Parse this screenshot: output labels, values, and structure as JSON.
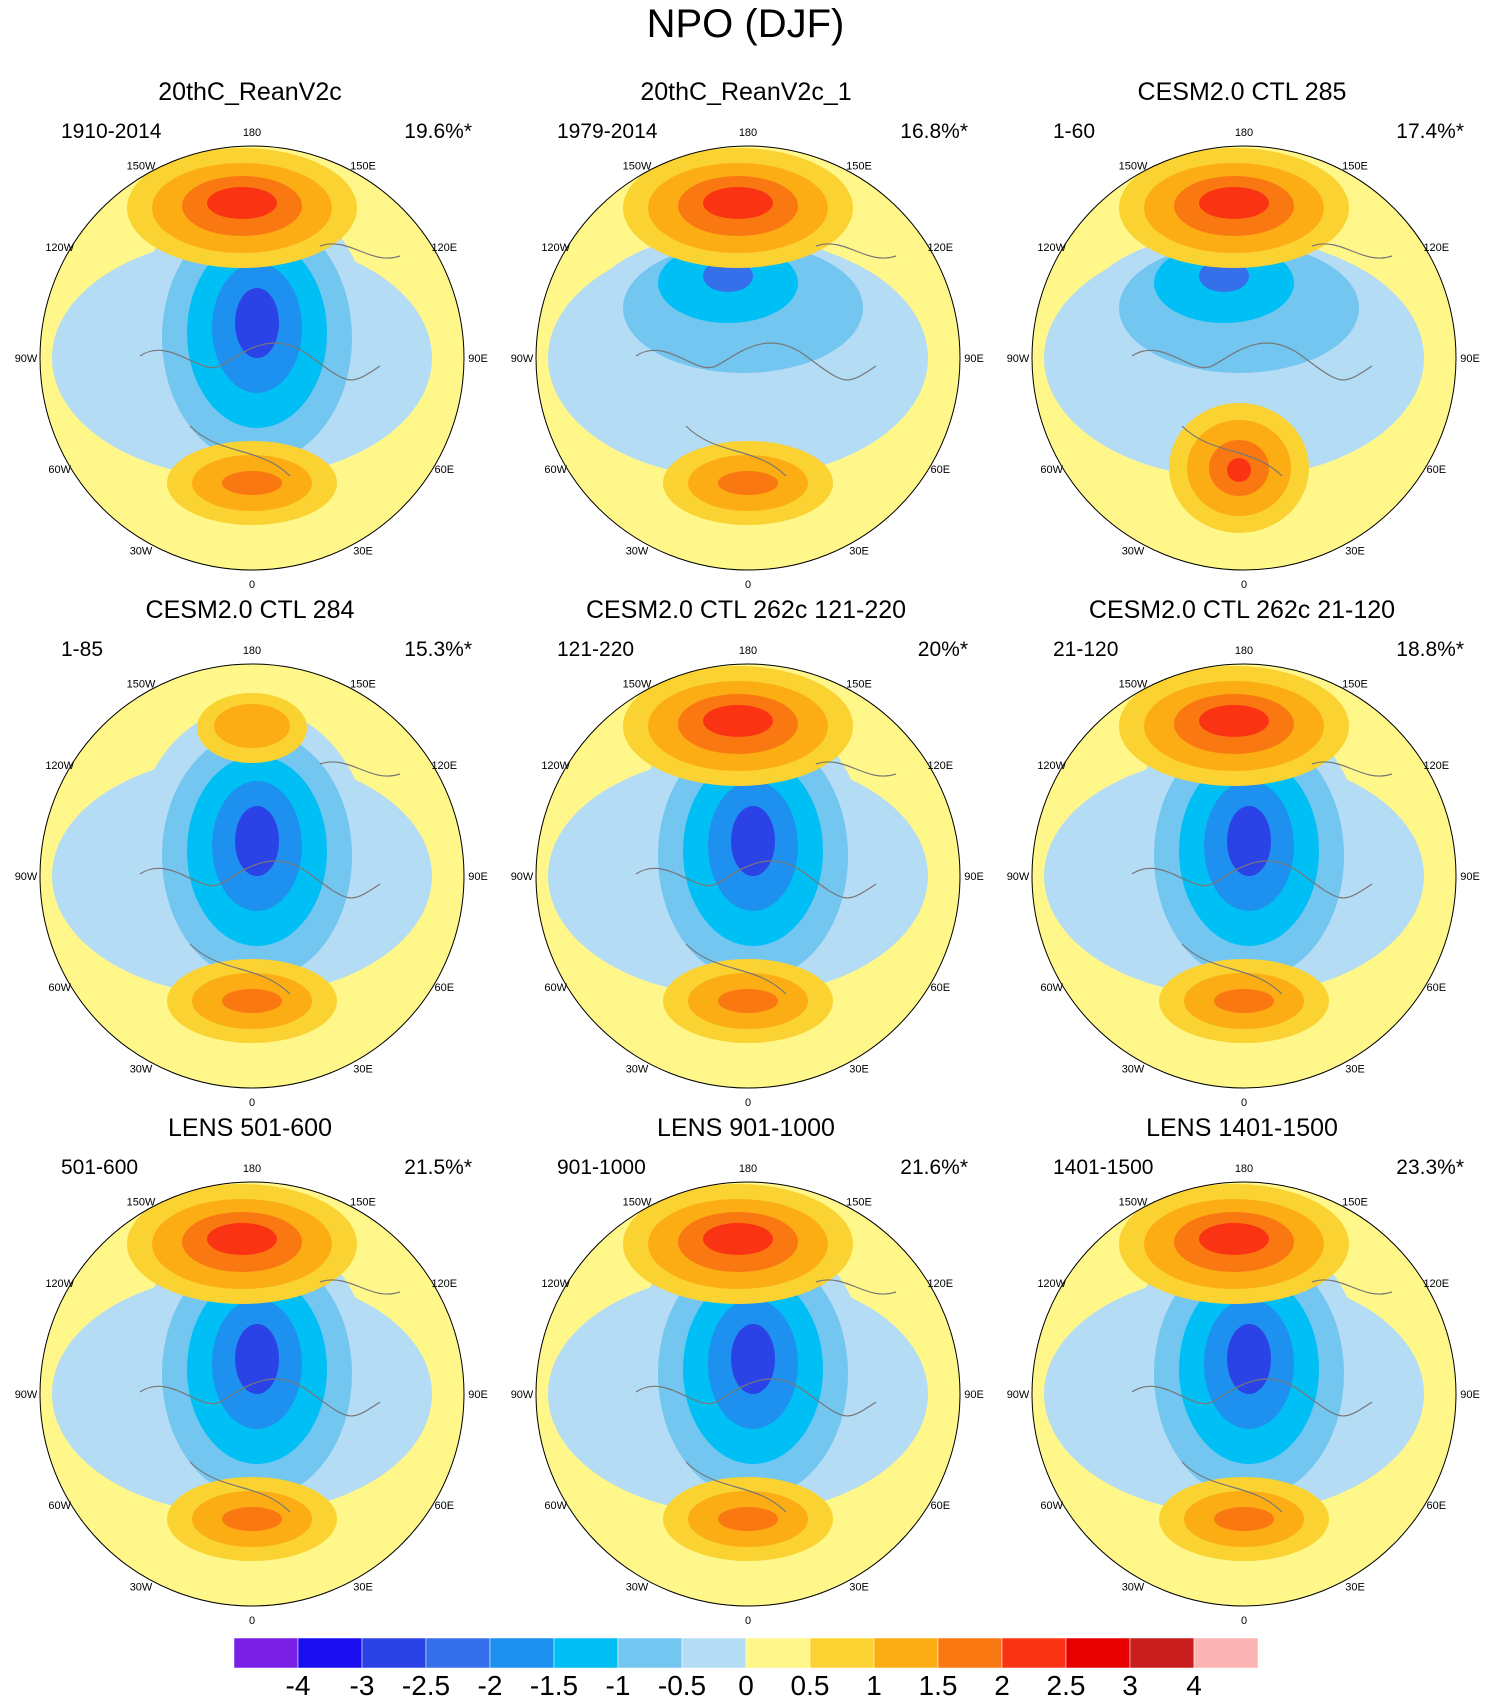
{
  "title": "NPO (DJF)",
  "panels": [
    {
      "title": "20thC_ReanV2c",
      "period": "1910-2014",
      "variance": "19.6%*"
    },
    {
      "title": "20thC_ReanV2c_1",
      "period": "1979-2014",
      "variance": "16.8%*"
    },
    {
      "title": "CESM2.0 CTL 285",
      "period": "1-60",
      "variance": "17.4%*"
    },
    {
      "title": "CESM2.0 CTL 284",
      "period": "1-85",
      "variance": "15.3%*"
    },
    {
      "title": "CESM2.0 CTL 262c 121-220",
      "period": "121-220",
      "variance": "20%*"
    },
    {
      "title": "CESM2.0 CTL 262c 21-120",
      "period": "21-120",
      "variance": "18.8%*"
    },
    {
      "title": "LENS 501-600",
      "period": "501-600",
      "variance": "21.5%*"
    },
    {
      "title": "LENS 901-1000",
      "period": "901-1000",
      "variance": "21.6%*"
    },
    {
      "title": "LENS 1401-1500",
      "period": "1401-1500",
      "variance": "23.3%*"
    }
  ],
  "longitude_labels": [
    "180",
    "150E",
    "120E",
    "90E",
    "60E",
    "30E",
    "0",
    "30W",
    "60W",
    "90W",
    "120W",
    "150W"
  ],
  "colorbar": {
    "labels": [
      "-4",
      "-3",
      "-2.5",
      "-2",
      "-1.5",
      "-1",
      "-0.5",
      "0",
      "0.5",
      "1",
      "1.5",
      "2",
      "2.5",
      "3",
      "4"
    ],
    "colors": [
      "#7a1fe6",
      "#1a0ef0",
      "#2b43e6",
      "#3570ea",
      "#1e90f0",
      "#00bff5",
      "#73c6f0",
      "#b4dcf4",
      "#fff78a",
      "#fad232",
      "#fcad14",
      "#fa7812",
      "#fa3412",
      "#e60000",
      "#c81e1e",
      "#fcb4b4"
    ]
  }
}
